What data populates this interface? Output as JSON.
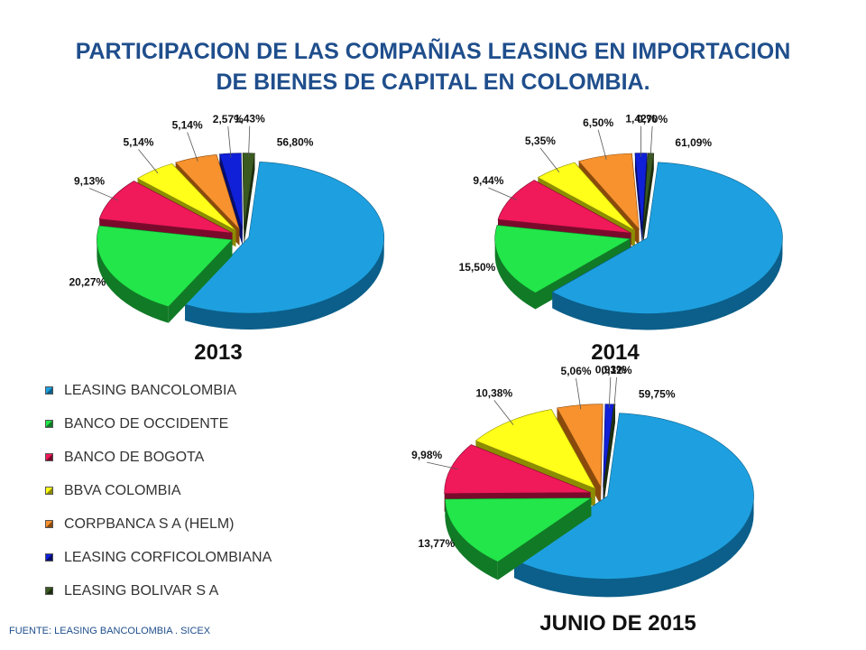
{
  "title": {
    "line1": "PARTICIPACION  DE LAS COMPAÑIAS LEASING  EN IMPORTACION",
    "line2": "DE BIENES DE CAPITAL EN COLOMBIA."
  },
  "legend": [
    {
      "label": "LEASING BANCOLOMBIA",
      "color": "#1ea0e0",
      "dark": "#0b5f8a"
    },
    {
      "label": "BANCO DE OCCIDENTE",
      "color": "#22e64a",
      "dark": "#117a26"
    },
    {
      "label": "BANCO DE BOGOTA",
      "color": "#f0195a",
      "dark": "#7a0a2c"
    },
    {
      "label": "BBVA COLOMBIA",
      "color": "#ffff1a",
      "dark": "#8c8c00"
    },
    {
      "label": "CORPBANCA  S A (HELM)",
      "color": "#f7922e",
      "dark": "#8a4a0c"
    },
    {
      "label": "LEASING CORFICOLOMBIANA",
      "color": "#1020d8",
      "dark": "#060c6a"
    },
    {
      "label": "LEASING BOLIVAR S A",
      "color": "#3a5a20",
      "dark": "#1c2c0e"
    }
  ],
  "source": "FUENTE: LEASING BANCOLOMBIA . SICEX",
  "chart_data": [
    {
      "type": "pie",
      "title": "2013",
      "categories": [
        "LEASING BANCOLOMBIA",
        "BANCO DE OCCIDENTE",
        "BANCO DE BOGOTA",
        "BBVA COLOMBIA",
        "CORPBANCA  S A (HELM)",
        "LEASING CORFICOLOMBIANA",
        "LEASING BOLIVAR S A"
      ],
      "values": [
        56.8,
        20.27,
        9.13,
        5.14,
        5.14,
        2.57,
        1.43
      ],
      "labels": [
        "56,80%",
        "20,27%",
        "9,13%",
        "5,14%",
        "5,14%",
        "2,57%",
        "1,43%"
      ],
      "exploded": true
    },
    {
      "type": "pie",
      "title": "2014",
      "categories": [
        "LEASING BANCOLOMBIA",
        "BANCO DE OCCIDENTE",
        "BANCO DE BOGOTA",
        "BBVA COLOMBIA",
        "CORPBANCA  S A (HELM)",
        "LEASING CORFICOLOMBIANA",
        "LEASING BOLIVAR S A"
      ],
      "values": [
        61.09,
        15.5,
        9.44,
        5.35,
        6.5,
        1.42,
        0.7
      ],
      "labels": [
        "61,09%",
        "15,50%",
        "9,44%",
        "5,35%",
        "6,50%",
        "1,42%",
        "0,70%"
      ],
      "exploded": true
    },
    {
      "type": "pie",
      "title": "JUNIO DE 2015",
      "categories": [
        "LEASING BANCOLOMBIA",
        "BANCO DE OCCIDENTE",
        "BANCO DE BOGOTA",
        "BBVA COLOMBIA",
        "CORPBANCA  S A (HELM)",
        "LEASING CORFICOLOMBIANA",
        "LEASING BOLIVAR S A"
      ],
      "values": [
        59.75,
        13.77,
        9.98,
        10.38,
        5.06,
        0.93,
        0.12
      ],
      "labels": [
        "59,75%",
        "13,77%",
        "9,98%",
        "10,38%",
        "5,06%",
        "0,93%",
        "0,12%"
      ],
      "exploded": true
    }
  ]
}
